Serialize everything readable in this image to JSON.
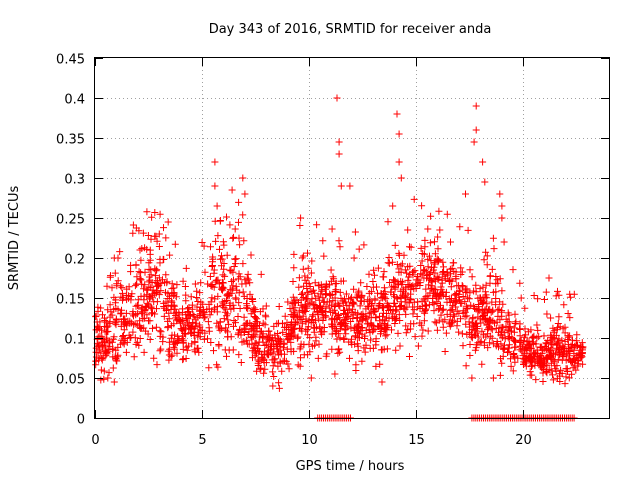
{
  "chart_data": {
    "type": "scatter",
    "title": "Day 343 of 2016, SRMTID for receiver anda",
    "xlabel": "GPS time / hours",
    "ylabel": "SRMTID / TECUs",
    "xlim": [
      0,
      24
    ],
    "ylim": [
      0,
      0.45
    ],
    "grid": true,
    "marker": "+",
    "color": "#ff0000",
    "x_ticks": [
      0,
      5,
      10,
      15,
      20
    ],
    "x_tick_labels": [
      "0",
      "5",
      "10",
      "15",
      "20"
    ],
    "y_ticks": [
      0,
      0.05,
      0.1,
      0.15,
      0.2,
      0.25,
      0.3,
      0.35,
      0.4,
      0.45
    ],
    "y_tick_labels": [
      "0",
      "0.05",
      "0.1",
      "0.15",
      "0.2",
      "0.25",
      "0.3",
      "0.35",
      "0.4",
      "0.45"
    ],
    "envelope": {
      "description": "Approximate dense-cloud profile: [hour, low, high] of the bulk of points",
      "profile": [
        [
          0.0,
          0.06,
          0.14
        ],
        [
          0.5,
          0.06,
          0.13
        ],
        [
          1.0,
          0.07,
          0.2
        ],
        [
          1.5,
          0.08,
          0.16
        ],
        [
          2.0,
          0.08,
          0.2
        ],
        [
          2.5,
          0.1,
          0.22
        ],
        [
          3.0,
          0.08,
          0.22
        ],
        [
          3.5,
          0.07,
          0.18
        ],
        [
          4.0,
          0.07,
          0.16
        ],
        [
          4.5,
          0.08,
          0.15
        ],
        [
          5.0,
          0.08,
          0.16
        ],
        [
          5.5,
          0.09,
          0.22
        ],
        [
          6.0,
          0.08,
          0.22
        ],
        [
          6.5,
          0.08,
          0.22
        ],
        [
          7.0,
          0.07,
          0.2
        ],
        [
          7.5,
          0.06,
          0.14
        ],
        [
          8.0,
          0.05,
          0.13
        ],
        [
          8.5,
          0.05,
          0.12
        ],
        [
          9.0,
          0.06,
          0.13
        ],
        [
          9.5,
          0.07,
          0.18
        ],
        [
          10.0,
          0.08,
          0.2
        ],
        [
          10.5,
          0.09,
          0.18
        ],
        [
          11.0,
          0.09,
          0.19
        ],
        [
          11.5,
          0.08,
          0.16
        ],
        [
          12.0,
          0.08,
          0.18
        ],
        [
          12.5,
          0.08,
          0.17
        ],
        [
          13.0,
          0.08,
          0.18
        ],
        [
          13.5,
          0.08,
          0.18
        ],
        [
          14.0,
          0.09,
          0.2
        ],
        [
          14.5,
          0.1,
          0.2
        ],
        [
          15.0,
          0.11,
          0.22
        ],
        [
          15.5,
          0.12,
          0.22
        ],
        [
          16.0,
          0.11,
          0.21
        ],
        [
          16.5,
          0.1,
          0.2
        ],
        [
          17.0,
          0.09,
          0.2
        ],
        [
          17.5,
          0.07,
          0.17
        ],
        [
          18.0,
          0.08,
          0.16
        ],
        [
          18.5,
          0.08,
          0.18
        ],
        [
          19.0,
          0.07,
          0.15
        ],
        [
          19.5,
          0.07,
          0.13
        ],
        [
          20.0,
          0.06,
          0.11
        ],
        [
          20.5,
          0.05,
          0.1
        ],
        [
          21.0,
          0.05,
          0.1
        ],
        [
          21.5,
          0.05,
          0.12
        ],
        [
          22.0,
          0.05,
          0.11
        ],
        [
          22.5,
          0.06,
          0.1
        ],
        [
          22.8,
          0.07,
          0.1
        ]
      ]
    },
    "notable_points": [
      [
        0.1,
        0.12
      ],
      [
        0.3,
        0.06
      ],
      [
        0.6,
        0.05
      ],
      [
        0.9,
        0.045
      ],
      [
        0.9,
        0.2
      ],
      [
        2.1,
        0.21
      ],
      [
        3.0,
        0.23
      ],
      [
        5.6,
        0.32
      ],
      [
        5.6,
        0.29
      ],
      [
        5.7,
        0.265
      ],
      [
        6.4,
        0.285
      ],
      [
        6.9,
        0.3
      ],
      [
        7.0,
        0.28
      ],
      [
        8.3,
        0.04
      ],
      [
        9.6,
        0.25
      ],
      [
        11.3,
        0.4
      ],
      [
        11.4,
        0.345
      ],
      [
        11.4,
        0.33
      ],
      [
        11.5,
        0.29
      ],
      [
        11.9,
        0.29
      ],
      [
        13.9,
        0.265
      ],
      [
        14.1,
        0.38
      ],
      [
        14.2,
        0.355
      ],
      [
        14.2,
        0.32
      ],
      [
        14.3,
        0.3
      ],
      [
        14.6,
        0.235
      ],
      [
        16.1,
        0.235
      ],
      [
        17.3,
        0.28
      ],
      [
        17.8,
        0.39
      ],
      [
        17.8,
        0.36
      ],
      [
        17.7,
        0.345
      ],
      [
        18.1,
        0.32
      ],
      [
        18.2,
        0.295
      ],
      [
        18.9,
        0.28
      ],
      [
        19.0,
        0.265
      ],
      [
        19.0,
        0.25
      ],
      [
        19.1,
        0.22
      ],
      [
        19.9,
        0.15
      ],
      [
        21.2,
        0.175
      ],
      [
        21.1,
        0.13
      ],
      [
        8.0,
        0.14
      ],
      [
        9.0,
        0.145
      ],
      [
        10.1,
        0.05
      ],
      [
        11.2,
        0.055
      ],
      [
        12.1,
        0.2
      ],
      [
        13.4,
        0.045
      ],
      [
        15.1,
        0.09
      ],
      [
        16.6,
        0.22
      ],
      [
        17.6,
        0.05
      ],
      [
        18.6,
        0.05
      ]
    ],
    "zero_runs": [
      [
        10.4,
        12.0
      ],
      [
        17.6,
        22.4
      ]
    ],
    "point_count": 2200,
    "seed": 343
  }
}
